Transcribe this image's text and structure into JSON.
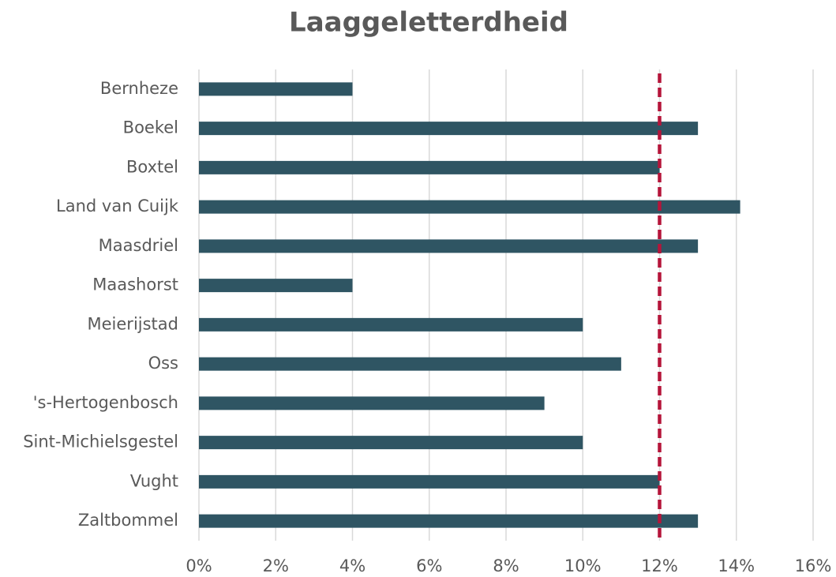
{
  "chart_data": {
    "type": "hbar",
    "title": "Laaggeletterdheid",
    "categories": [
      "Bernheze",
      "Boekel",
      "Boxtel",
      "Land van Cuijk",
      "Maasdriel",
      "Maashorst",
      "Meierijstad",
      "Oss",
      "'s-Hertogenbosch",
      "Sint-Michielsgestel",
      "Vught",
      "Zaltbommel"
    ],
    "values": [
      4,
      13,
      12,
      14.1,
      13,
      4,
      10,
      11,
      9,
      10,
      12,
      13
    ],
    "color": "#2f5563",
    "xlim": [
      0,
      16
    ],
    "xticks": [
      {
        "value": 0,
        "label": "0%"
      },
      {
        "value": 2,
        "label": "2%"
      },
      {
        "value": 4,
        "label": "4%"
      },
      {
        "value": 6,
        "label": "6%"
      },
      {
        "value": 8,
        "label": "8%"
      },
      {
        "value": 10,
        "label": "10%"
      },
      {
        "value": 12,
        "label": "12%"
      },
      {
        "value": 14,
        "label": "14%"
      },
      {
        "value": 16,
        "label": "16%"
      }
    ],
    "grid": true,
    "reference_line": {
      "value": 12,
      "color": "#b5153a"
    }
  }
}
